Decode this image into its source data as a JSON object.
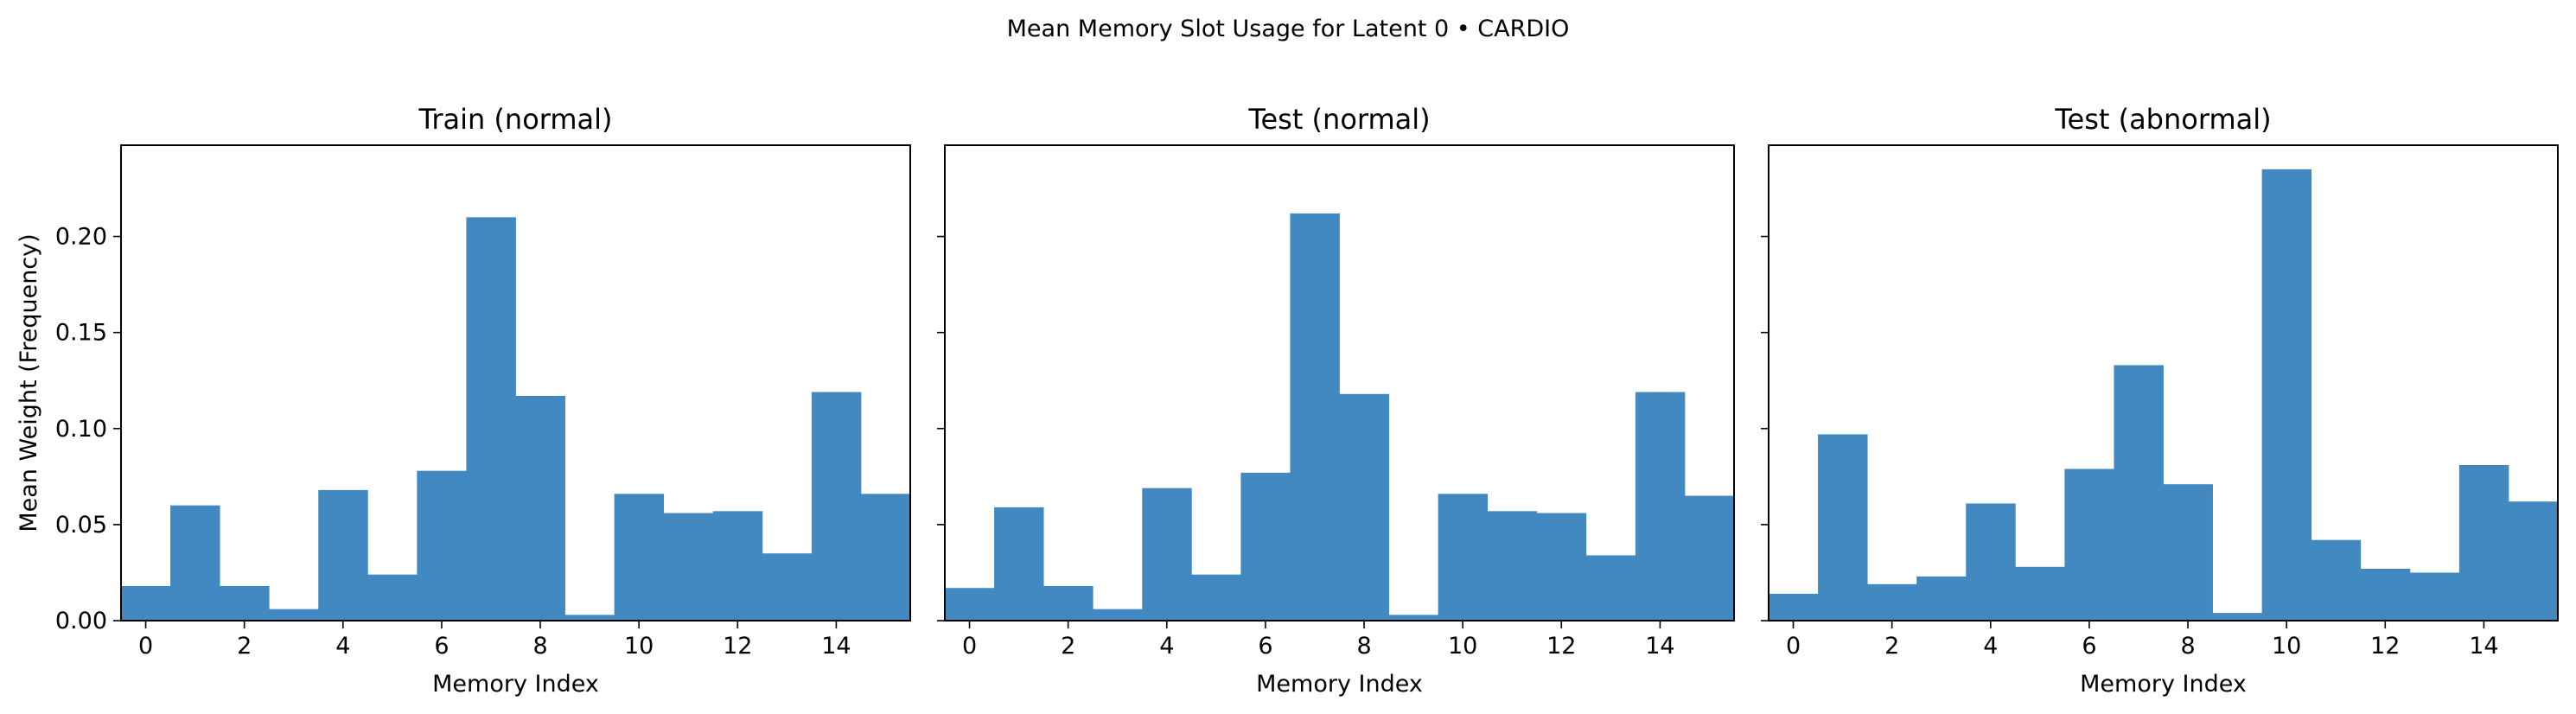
{
  "suptitle": "Mean Memory Slot Usage for Latent 0 • CARDIO",
  "colors": {
    "bar": "#4189c0",
    "axis": "#000000",
    "background": "#ffffff"
  },
  "chart_data": [
    {
      "type": "bar",
      "title": "Train (normal)",
      "xlabel": "Memory Index",
      "ylabel": "Mean Weight (Frequency)",
      "categories": [
        0,
        1,
        2,
        3,
        4,
        5,
        6,
        7,
        8,
        9,
        10,
        11,
        12,
        13,
        14,
        15
      ],
      "values": [
        0.018,
        0.06,
        0.018,
        0.006,
        0.068,
        0.024,
        0.078,
        0.21,
        0.117,
        0.003,
        0.066,
        0.056,
        0.057,
        0.035,
        0.119,
        0.066
      ],
      "xlim": [
        -0.5,
        15.5
      ],
      "ylim": [
        0,
        0.2475
      ],
      "xticks": [
        0,
        2,
        4,
        6,
        8,
        10,
        12,
        14
      ],
      "yticks": [
        "0.00",
        "0.05",
        "0.10",
        "0.15",
        "0.20"
      ],
      "grid": false,
      "show_ytick_labels": true
    },
    {
      "type": "bar",
      "title": "Test (normal)",
      "xlabel": "Memory Index",
      "ylabel": "",
      "categories": [
        0,
        1,
        2,
        3,
        4,
        5,
        6,
        7,
        8,
        9,
        10,
        11,
        12,
        13,
        14,
        15
      ],
      "values": [
        0.017,
        0.059,
        0.018,
        0.006,
        0.069,
        0.024,
        0.077,
        0.212,
        0.118,
        0.003,
        0.066,
        0.057,
        0.056,
        0.034,
        0.119,
        0.065
      ],
      "xlim": [
        -0.5,
        15.5
      ],
      "ylim": [
        0,
        0.2475
      ],
      "xticks": [
        0,
        2,
        4,
        6,
        8,
        10,
        12,
        14
      ],
      "yticks": [
        "0.00",
        "0.05",
        "0.10",
        "0.15",
        "0.20"
      ],
      "grid": false,
      "show_ytick_labels": false
    },
    {
      "type": "bar",
      "title": "Test (abnormal)",
      "xlabel": "Memory Index",
      "ylabel": "",
      "categories": [
        0,
        1,
        2,
        3,
        4,
        5,
        6,
        7,
        8,
        9,
        10,
        11,
        12,
        13,
        14,
        15
      ],
      "values": [
        0.014,
        0.097,
        0.019,
        0.023,
        0.061,
        0.028,
        0.079,
        0.133,
        0.071,
        0.004,
        0.235,
        0.042,
        0.027,
        0.025,
        0.081,
        0.062
      ],
      "xlim": [
        -0.5,
        15.5
      ],
      "ylim": [
        0,
        0.2475
      ],
      "xticks": [
        0,
        2,
        4,
        6,
        8,
        10,
        12,
        14
      ],
      "yticks": [
        "0.00",
        "0.05",
        "0.10",
        "0.15",
        "0.20"
      ],
      "grid": false,
      "show_ytick_labels": false
    }
  ]
}
